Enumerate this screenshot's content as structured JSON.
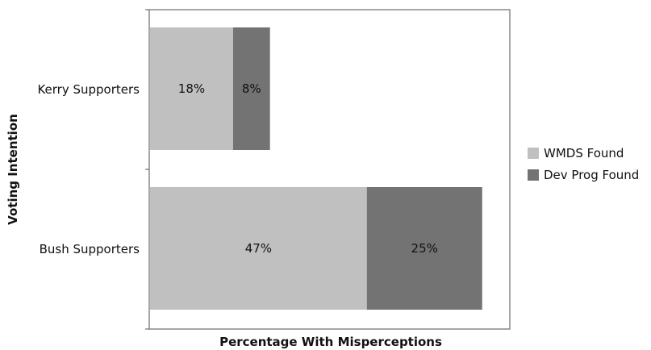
{
  "chart_data": {
    "type": "bar",
    "orientation": "horizontal",
    "stacked": true,
    "categories": [
      "Kerry Supporters",
      "Bush Supporters"
    ],
    "series": [
      {
        "name": "WMDS Found",
        "values": [
          18,
          47
        ],
        "labels": [
          "18%",
          "47%"
        ],
        "color": "#c0c0c0"
      },
      {
        "name": "Dev Prog Found",
        "values": [
          8,
          25
        ],
        "labels": [
          "8%",
          "25%"
        ],
        "color": "#737373"
      }
    ],
    "xlabel": "Percentage With Misperceptions",
    "ylabel": "Voting Intention",
    "xlim": [
      0,
      78
    ],
    "grid": false,
    "legend_position": "right"
  }
}
